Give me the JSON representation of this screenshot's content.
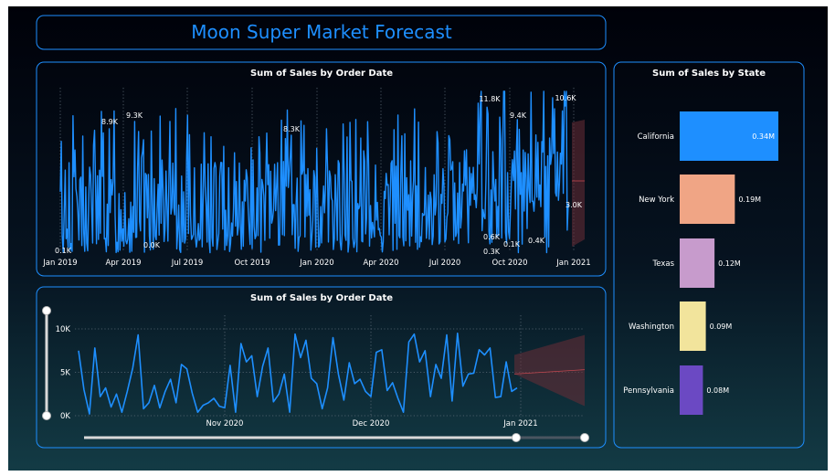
{
  "dashboard": {
    "title": "Moon Super Market Forecast"
  },
  "colors": {
    "accent": "#1e8fff",
    "forecast_band": "#6b2e37",
    "forecast_line": "#c0474f",
    "title_text": "#1e8fff"
  },
  "chart_data": [
    {
      "id": "sales_daily",
      "type": "line",
      "title": "Sum of Sales by Order Date",
      "xlabel": "",
      "ylabel": "",
      "x_ticks": [
        "Jan 2019",
        "Apr 2019",
        "Jul 2019",
        "Oct 2019",
        "Jan 2020",
        "Apr 2020",
        "Jul 2020",
        "Oct 2020",
        "Jan 2021"
      ],
      "annotations": [
        "0.1K",
        "8.9K",
        "9.3K",
        "0.0K",
        "8.3K",
        "11.8K",
        "9.4K",
        "10.6K",
        "0.6K",
        "0.3K",
        "0.1K",
        "0.4K",
        "3.0K"
      ],
      "forecast": true,
      "gridlines": "vertical-dotted"
    },
    {
      "id": "sales_zoom",
      "type": "line",
      "title": "Sum of Sales by Order Date",
      "xlabel": "",
      "ylabel": "",
      "x_ticks": [
        "Nov 2020",
        "Dec 2020",
        "Jan 2021"
      ],
      "y_ticks": [
        "10K",
        "5K",
        "0K"
      ],
      "ylim": [
        0,
        10000
      ],
      "values": [
        7500,
        3000,
        200,
        7800,
        2200,
        3200,
        1000,
        2500,
        400,
        2800,
        5500,
        9300,
        800,
        1500,
        3500,
        900,
        2800,
        4200,
        1500,
        5900,
        5400,
        2600,
        400,
        1200,
        1500,
        2000,
        1100,
        900,
        5800,
        400,
        8300,
        6200,
        6900,
        2200,
        5700,
        7800,
        1600,
        2500,
        4800,
        400,
        9400,
        6700,
        8700,
        4300,
        3700,
        800,
        3200,
        9000,
        4800,
        1800,
        6100,
        3700,
        4200,
        2800,
        2200,
        7300,
        7600,
        2900,
        3800,
        2000,
        400,
        8500,
        9400,
        6200,
        7500,
        2200,
        5900,
        4300,
        9300,
        1700,
        9500,
        3400,
        4800,
        4900,
        7600,
        7000,
        7800,
        2100,
        2200,
        6200,
        2800,
        3200
      ],
      "forecast_value": 5300,
      "forecast_band": [
        2000,
        9300
      ],
      "gridlines": "dotted"
    },
    {
      "id": "sales_by_state",
      "type": "bar",
      "orientation": "horizontal",
      "title": "Sum of Sales by State",
      "categories": [
        "California",
        "New York",
        "Texas",
        "Washington",
        "Pennsylvania"
      ],
      "values": [
        0.34,
        0.19,
        0.12,
        0.09,
        0.08
      ],
      "value_labels": [
        "0.34M",
        "0.19M",
        "0.12M",
        "0.09M",
        "0.08M"
      ],
      "unit": "M",
      "colors": [
        "#1e8fff",
        "#f0a585",
        "#c79bcc",
        "#f2e49c",
        "#6b49c3"
      ]
    }
  ]
}
